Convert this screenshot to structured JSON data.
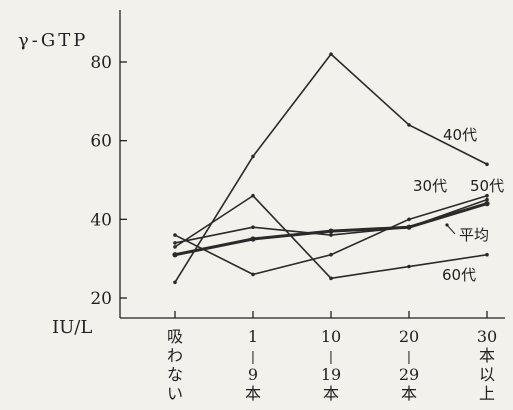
{
  "chart_data": {
    "type": "line",
    "title": "",
    "ylabel": "γ-GTP",
    "yunit": "IU/L",
    "xlabel": "",
    "ylim": [
      20,
      82
    ],
    "yticks": [
      20,
      40,
      60,
      80
    ],
    "grid": false,
    "categories": [
      "吸わない",
      "1−9本",
      "10−19本",
      "20−29本",
      "30本以上"
    ],
    "category_label_chars": [
      [
        "吸",
        "わ",
        "な",
        "い"
      ],
      [
        "1",
        "|",
        "9",
        "本"
      ],
      [
        "10",
        "|",
        "19",
        "本"
      ],
      [
        "20",
        "|",
        "29",
        "本"
      ],
      [
        "30",
        "本",
        "以",
        "上"
      ]
    ],
    "series": [
      {
        "name": "40代",
        "values": [
          24,
          56,
          82,
          64,
          54
        ],
        "bold": false
      },
      {
        "name": "30代",
        "values": [
          33,
          46,
          25,
          28,
          31
        ],
        "bold": false
      },
      {
        "name": "50代",
        "values": [
          36,
          26,
          31,
          40,
          46
        ],
        "bold": false
      },
      {
        "name": "60代",
        "values": [
          34,
          38,
          36,
          38,
          45
        ],
        "bold": false
      },
      {
        "name": "平均",
        "values": [
          31,
          35,
          37,
          38,
          44
        ],
        "bold": true
      }
    ]
  }
}
